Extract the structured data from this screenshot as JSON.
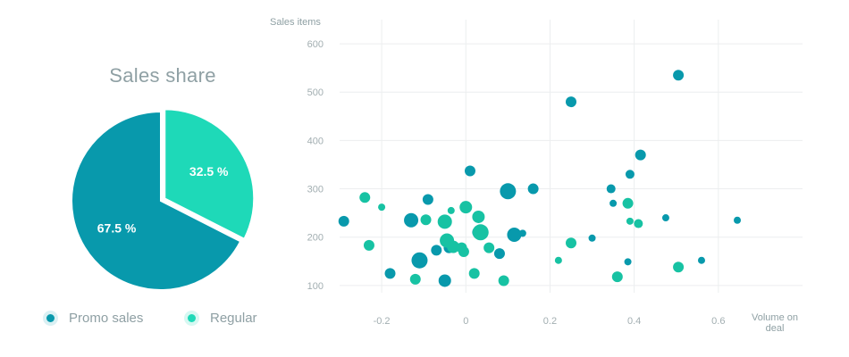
{
  "colors": {
    "promo": "#0899ac",
    "regular": "#17c2a3",
    "pie_regular": "#1ed9b8",
    "grid": "#eceeef",
    "axis_text": "#a2aeb1",
    "title": "#8fa0a4"
  },
  "chart_data": [
    {
      "type": "pie",
      "title": "Sales share",
      "slices": [
        {
          "name": "Regular",
          "value": 32.5,
          "label": "32.5 %",
          "exploded": true
        },
        {
          "name": "Promo sales",
          "value": 67.5,
          "label": "67.5 %",
          "exploded": false
        }
      ],
      "legend": [
        {
          "name": "Promo sales",
          "color_key": "promo"
        },
        {
          "name": "Regular",
          "color_key": "regular"
        }
      ],
      "legend_placement": "bottom"
    },
    {
      "type": "scatter",
      "bubble": true,
      "xlabel": "Volume on deal",
      "ylabel": "Sales items",
      "xlim": [
        -0.3,
        0.8
      ],
      "ylim": [
        85,
        650
      ],
      "x_ticks": [
        {
          "value": -0.2,
          "label": "-0.2"
        },
        {
          "value": 0,
          "label": "0"
        },
        {
          "value": 0.2,
          "label": "0.2"
        },
        {
          "value": 0.4,
          "label": "0.4"
        },
        {
          "value": 0.6,
          "label": "0.6"
        }
      ],
      "y_ticks": [
        {
          "value": 100,
          "label": "100"
        },
        {
          "value": 200,
          "label": "200"
        },
        {
          "value": 300,
          "label": "300"
        },
        {
          "value": 400,
          "label": "400"
        },
        {
          "value": 500,
          "label": "500"
        },
        {
          "value": 600,
          "label": "600"
        }
      ],
      "grid": true,
      "series": [
        {
          "name": "Promo sales",
          "points": [
            {
              "x": -0.29,
              "y": 233,
              "s": 6
            },
            {
              "x": -0.18,
              "y": 125,
              "s": 6
            },
            {
              "x": -0.13,
              "y": 235,
              "s": 8
            },
            {
              "x": -0.11,
              "y": 152,
              "s": 9
            },
            {
              "x": -0.09,
              "y": 278,
              "s": 6
            },
            {
              "x": -0.07,
              "y": 173,
              "s": 6
            },
            {
              "x": -0.05,
              "y": 110,
              "s": 7
            },
            {
              "x": -0.04,
              "y": 178,
              "s": 6
            },
            {
              "x": 0.01,
              "y": 337,
              "s": 6
            },
            {
              "x": 0.03,
              "y": 210,
              "s": 7
            },
            {
              "x": 0.08,
              "y": 166,
              "s": 6
            },
            {
              "x": 0.1,
              "y": 295,
              "s": 9
            },
            {
              "x": 0.115,
              "y": 205,
              "s": 8
            },
            {
              "x": 0.135,
              "y": 208,
              "s": 4
            },
            {
              "x": 0.16,
              "y": 300,
              "s": 6
            },
            {
              "x": 0.25,
              "y": 480,
              "s": 6
            },
            {
              "x": 0.3,
              "y": 198,
              "s": 4
            },
            {
              "x": 0.345,
              "y": 300,
              "s": 5
            },
            {
              "x": 0.35,
              "y": 270,
              "s": 4
            },
            {
              "x": 0.39,
              "y": 330,
              "s": 5
            },
            {
              "x": 0.385,
              "y": 149,
              "s": 4
            },
            {
              "x": 0.415,
              "y": 370,
              "s": 6
            },
            {
              "x": 0.475,
              "y": 240,
              "s": 4
            },
            {
              "x": 0.505,
              "y": 535,
              "s": 6
            },
            {
              "x": 0.56,
              "y": 152,
              "s": 4
            },
            {
              "x": 0.645,
              "y": 235,
              "s": 4
            }
          ]
        },
        {
          "name": "Regular",
          "points": [
            {
              "x": -0.24,
              "y": 282,
              "s": 6
            },
            {
              "x": -0.23,
              "y": 183,
              "s": 6
            },
            {
              "x": -0.2,
              "y": 262,
              "s": 4
            },
            {
              "x": -0.12,
              "y": 113,
              "s": 6
            },
            {
              "x": -0.095,
              "y": 236,
              "s": 6
            },
            {
              "x": -0.05,
              "y": 232,
              "s": 8
            },
            {
              "x": -0.045,
              "y": 193,
              "s": 8
            },
            {
              "x": -0.035,
              "y": 255,
              "s": 4
            },
            {
              "x": -0.03,
              "y": 180,
              "s": 7
            },
            {
              "x": -0.01,
              "y": 178,
              "s": 6
            },
            {
              "x": -0.005,
              "y": 170,
              "s": 6
            },
            {
              "x": 0.0,
              "y": 262,
              "s": 7
            },
            {
              "x": 0.02,
              "y": 125,
              "s": 6
            },
            {
              "x": 0.03,
              "y": 242,
              "s": 7
            },
            {
              "x": 0.035,
              "y": 210,
              "s": 9
            },
            {
              "x": 0.055,
              "y": 178,
              "s": 6
            },
            {
              "x": 0.09,
              "y": 110,
              "s": 6
            },
            {
              "x": 0.22,
              "y": 152,
              "s": 4
            },
            {
              "x": 0.25,
              "y": 188,
              "s": 6
            },
            {
              "x": 0.36,
              "y": 118,
              "s": 6
            },
            {
              "x": 0.385,
              "y": 270,
              "s": 6
            },
            {
              "x": 0.39,
              "y": 233,
              "s": 4
            },
            {
              "x": 0.41,
              "y": 228,
              "s": 5
            },
            {
              "x": 0.505,
              "y": 138,
              "s": 6
            }
          ]
        }
      ]
    }
  ]
}
